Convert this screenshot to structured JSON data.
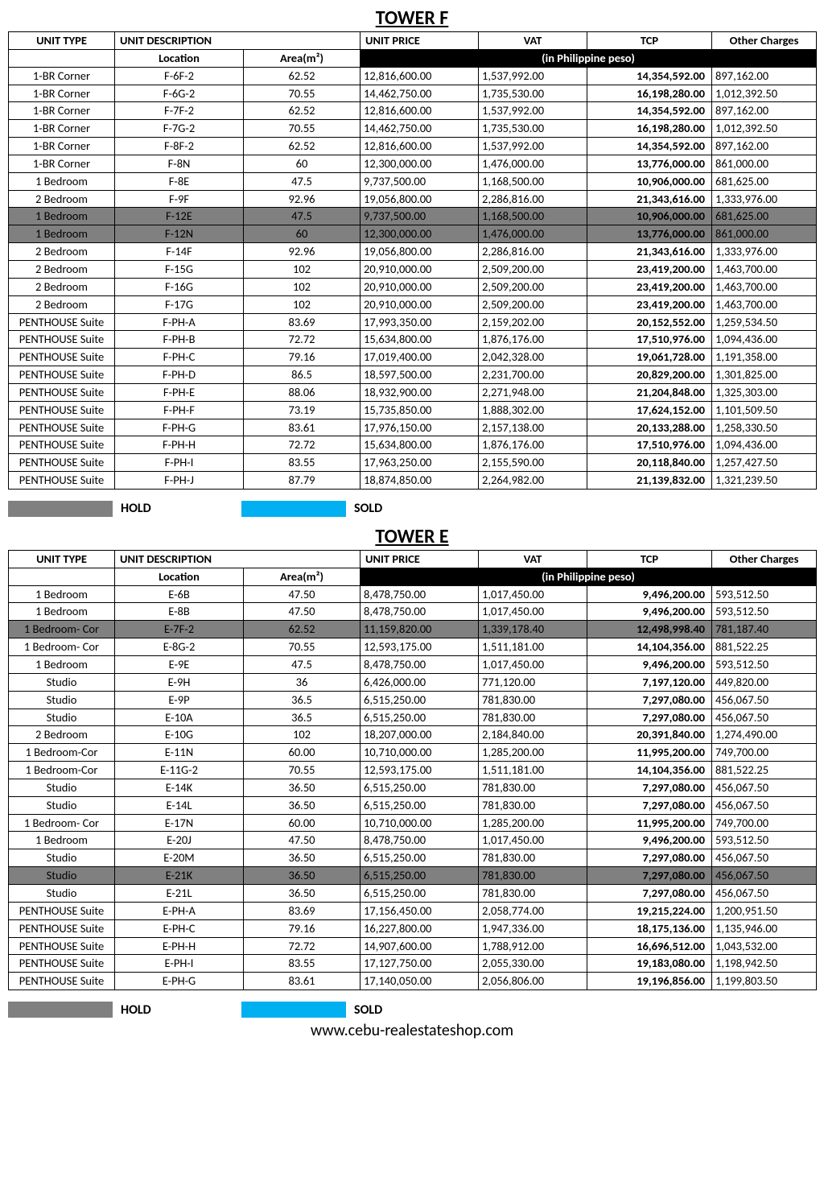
{
  "colors": {
    "hold": "#808080",
    "sold": "#00b0f0",
    "headerBand": "#000000",
    "headerBandText": "#ffffff"
  },
  "legend": {
    "hold": "HOLD",
    "sold": "SOLD"
  },
  "headers": {
    "unitType": "UNIT TYPE",
    "unitDesc": "UNIT DESCRIPTION",
    "location": "Location",
    "area": "Area(m²)",
    "unitPrice": "UNIT PRICE",
    "vat": "VAT",
    "tcp": "TCP",
    "other": "Other Charges",
    "peso": "(in Philippine peso)"
  },
  "footer": "www.cebu-realestateshop.com",
  "towers": [
    {
      "title": "TOWER F",
      "rows": [
        {
          "type": "1-BR Corner",
          "loc": "F-6F-2",
          "area": "62.52",
          "price": "12,816,600.00",
          "vat": "1,537,992.00",
          "tcp": "14,354,592.00",
          "other": "897,162.00",
          "status": ""
        },
        {
          "type": "1-BR Corner",
          "loc": "F-6G-2",
          "area": "70.55",
          "price": "14,462,750.00",
          "vat": "1,735,530.00",
          "tcp": "16,198,280.00",
          "other": "1,012,392.50",
          "status": ""
        },
        {
          "type": "1-BR Corner",
          "loc": "F-7F-2",
          "area": "62.52",
          "price": "12,816,600.00",
          "vat": "1,537,992.00",
          "tcp": "14,354,592.00",
          "other": "897,162.00",
          "status": ""
        },
        {
          "type": "1-BR Corner",
          "loc": "F-7G-2",
          "area": "70.55",
          "price": "14,462,750.00",
          "vat": "1,735,530.00",
          "tcp": "16,198,280.00",
          "other": "1,012,392.50",
          "status": ""
        },
        {
          "type": "1-BR Corner",
          "loc": "F-8F-2",
          "area": "62.52",
          "price": "12,816,600.00",
          "vat": "1,537,992.00",
          "tcp": "14,354,592.00",
          "other": "897,162.00",
          "status": ""
        },
        {
          "type": "1-BR Corner",
          "loc": "F-8N",
          "area": "60",
          "price": "12,300,000.00",
          "vat": "1,476,000.00",
          "tcp": "13,776,000.00",
          "other": "861,000.00",
          "status": ""
        },
        {
          "type": "1 Bedroom",
          "loc": "F-8E",
          "area": "47.5",
          "price": "9,737,500.00",
          "vat": "1,168,500.00",
          "tcp": "10,906,000.00",
          "other": "681,625.00",
          "status": ""
        },
        {
          "type": "2 Bedroom",
          "loc": "F-9F",
          "area": "92.96",
          "price": "19,056,800.00",
          "vat": "2,286,816.00",
          "tcp": "21,343,616.00",
          "other": "1,333,976.00",
          "status": ""
        },
        {
          "type": "1 Bedroom",
          "loc": "F-12E",
          "area": "47.5",
          "price": "9,737,500.00",
          "vat": "1,168,500.00",
          "tcp": "10,906,000.00",
          "other": "681,625.00",
          "status": "hold"
        },
        {
          "type": "1 Bedroom",
          "loc": "F-12N",
          "area": "60",
          "price": "12,300,000.00",
          "vat": "1,476,000.00",
          "tcp": "13,776,000.00",
          "other": "861,000.00",
          "status": "hold"
        },
        {
          "type": "2 Bedroom",
          "loc": "F-14F",
          "area": "92.96",
          "price": "19,056,800.00",
          "vat": "2,286,816.00",
          "tcp": "21,343,616.00",
          "other": "1,333,976.00",
          "status": ""
        },
        {
          "type": "2 Bedroom",
          "loc": "F-15G",
          "area": "102",
          "price": "20,910,000.00",
          "vat": "2,509,200.00",
          "tcp": "23,419,200.00",
          "other": "1,463,700.00",
          "status": ""
        },
        {
          "type": "2 Bedroom",
          "loc": "F-16G",
          "area": "102",
          "price": "20,910,000.00",
          "vat": "2,509,200.00",
          "tcp": "23,419,200.00",
          "other": "1,463,700.00",
          "status": ""
        },
        {
          "type": "2 Bedroom",
          "loc": "F-17G",
          "area": "102",
          "price": "20,910,000.00",
          "vat": "2,509,200.00",
          "tcp": "23,419,200.00",
          "other": "1,463,700.00",
          "status": ""
        },
        {
          "type": "PENTHOUSE Suite",
          "loc": "F-PH-A",
          "area": "83.69",
          "price": "17,993,350.00",
          "vat": "2,159,202.00",
          "tcp": "20,152,552.00",
          "other": "1,259,534.50",
          "status": ""
        },
        {
          "type": "PENTHOUSE Suite",
          "loc": "F-PH-B",
          "area": "72.72",
          "price": "15,634,800.00",
          "vat": "1,876,176.00",
          "tcp": "17,510,976.00",
          "other": "1,094,436.00",
          "status": ""
        },
        {
          "type": "PENTHOUSE Suite",
          "loc": "F-PH-C",
          "area": "79.16",
          "price": "17,019,400.00",
          "vat": "2,042,328.00",
          "tcp": "19,061,728.00",
          "other": "1,191,358.00",
          "status": ""
        },
        {
          "type": "PENTHOUSE Suite",
          "loc": "F-PH-D",
          "area": "86.5",
          "price": "18,597,500.00",
          "vat": "2,231,700.00",
          "tcp": "20,829,200.00",
          "other": "1,301,825.00",
          "status": ""
        },
        {
          "type": "PENTHOUSE Suite",
          "loc": "F-PH-E",
          "area": "88.06",
          "price": "18,932,900.00",
          "vat": "2,271,948.00",
          "tcp": "21,204,848.00",
          "other": "1,325,303.00",
          "status": ""
        },
        {
          "type": "PENTHOUSE Suite",
          "loc": "F-PH-F",
          "area": "73.19",
          "price": "15,735,850.00",
          "vat": "1,888,302.00",
          "tcp": "17,624,152.00",
          "other": "1,101,509.50",
          "status": ""
        },
        {
          "type": "PENTHOUSE Suite",
          "loc": "F-PH-G",
          "area": "83.61",
          "price": "17,976,150.00",
          "vat": "2,157,138.00",
          "tcp": "20,133,288.00",
          "other": "1,258,330.50",
          "status": ""
        },
        {
          "type": "PENTHOUSE Suite",
          "loc": "F-PH-H",
          "area": "72.72",
          "price": "15,634,800.00",
          "vat": "1,876,176.00",
          "tcp": "17,510,976.00",
          "other": "1,094,436.00",
          "status": ""
        },
        {
          "type": "PENTHOUSE Suite",
          "loc": "F-PH-I",
          "area": "83.55",
          "price": "17,963,250.00",
          "vat": "2,155,590.00",
          "tcp": "20,118,840.00",
          "other": "1,257,427.50",
          "status": ""
        },
        {
          "type": "PENTHOUSE Suite",
          "loc": "F-PH-J",
          "area": "87.79",
          "price": "18,874,850.00",
          "vat": "2,264,982.00",
          "tcp": "21,139,832.00",
          "other": "1,321,239.50",
          "status": ""
        }
      ]
    },
    {
      "title": "TOWER E",
      "rows": [
        {
          "type": "1 Bedroom",
          "loc": "E-6B",
          "area": "47.50",
          "price": "8,478,750.00",
          "vat": "1,017,450.00",
          "tcp": "9,496,200.00",
          "other": "593,512.50",
          "status": ""
        },
        {
          "type": "1 Bedroom",
          "loc": "E-8B",
          "area": "47.50",
          "price": "8,478,750.00",
          "vat": "1,017,450.00",
          "tcp": "9,496,200.00",
          "other": "593,512.50",
          "status": ""
        },
        {
          "type": "1 Bedroom- Cor",
          "loc": "E-7F-2",
          "area": "62.52",
          "price": "11,159,820.00",
          "vat": "1,339,178.40",
          "tcp": "12,498,998.40",
          "other": "781,187.40",
          "status": "hold"
        },
        {
          "type": "1 Bedroom- Cor",
          "loc": "E-8G-2",
          "area": "70.55",
          "price": "12,593,175.00",
          "vat": "1,511,181.00",
          "tcp": "14,104,356.00",
          "other": "881,522.25",
          "status": ""
        },
        {
          "type": "1 Bedroom",
          "loc": "E-9E",
          "area": "47.5",
          "price": "8,478,750.00",
          "vat": "1,017,450.00",
          "tcp": "9,496,200.00",
          "other": "593,512.50",
          "status": ""
        },
        {
          "type": "Studio",
          "loc": "E-9H",
          "area": "36",
          "price": "6,426,000.00",
          "vat": "771,120.00",
          "tcp": "7,197,120.00",
          "other": "449,820.00",
          "status": ""
        },
        {
          "type": "Studio",
          "loc": "E-9P",
          "area": "36.5",
          "price": "6,515,250.00",
          "vat": "781,830.00",
          "tcp": "7,297,080.00",
          "other": "456,067.50",
          "status": ""
        },
        {
          "type": "Studio",
          "loc": "E-10A",
          "area": "36.5",
          "price": "6,515,250.00",
          "vat": "781,830.00",
          "tcp": "7,297,080.00",
          "other": "456,067.50",
          "status": ""
        },
        {
          "type": "2 Bedroom",
          "loc": "E-10G",
          "area": "102",
          "price": "18,207,000.00",
          "vat": "2,184,840.00",
          "tcp": "20,391,840.00",
          "other": "1,274,490.00",
          "status": ""
        },
        {
          "type": "1 Bedroom-Cor",
          "loc": "E-11N",
          "area": "60.00",
          "price": "10,710,000.00",
          "vat": "1,285,200.00",
          "tcp": "11,995,200.00",
          "other": "749,700.00",
          "status": ""
        },
        {
          "type": "1 Bedroom-Cor",
          "loc": "E-11G-2",
          "area": "70.55",
          "price": "12,593,175.00",
          "vat": "1,511,181.00",
          "tcp": "14,104,356.00",
          "other": "881,522.25",
          "status": ""
        },
        {
          "type": "Studio",
          "loc": "E-14K",
          "area": "36.50",
          "price": "6,515,250.00",
          "vat": "781,830.00",
          "tcp": "7,297,080.00",
          "other": "456,067.50",
          "status": ""
        },
        {
          "type": "Studio",
          "loc": "E-14L",
          "area": "36.50",
          "price": "6,515,250.00",
          "vat": "781,830.00",
          "tcp": "7,297,080.00",
          "other": "456,067.50",
          "status": ""
        },
        {
          "type": "1 Bedroom- Cor",
          "loc": "E-17N",
          "area": "60.00",
          "price": "10,710,000.00",
          "vat": "1,285,200.00",
          "tcp": "11,995,200.00",
          "other": "749,700.00",
          "status": ""
        },
        {
          "type": "1 Bedroom",
          "loc": "E-20J",
          "area": "47.50",
          "price": "8,478,750.00",
          "vat": "1,017,450.00",
          "tcp": "9,496,200.00",
          "other": "593,512.50",
          "status": ""
        },
        {
          "type": "Studio",
          "loc": "E-20M",
          "area": "36.50",
          "price": "6,515,250.00",
          "vat": "781,830.00",
          "tcp": "7,297,080.00",
          "other": "456,067.50",
          "status": ""
        },
        {
          "type": "Studio",
          "loc": "E-21K",
          "area": "36.50",
          "price": "6,515,250.00",
          "vat": "781,830.00",
          "tcp": "7,297,080.00",
          "other": "456,067.50",
          "status": "hold"
        },
        {
          "type": "Studio",
          "loc": "E-21L",
          "area": "36.50",
          "price": "6,515,250.00",
          "vat": "781,830.00",
          "tcp": "7,297,080.00",
          "other": "456,067.50",
          "status": ""
        },
        {
          "type": "PENTHOUSE Suite",
          "loc": "E-PH-A",
          "area": "83.69",
          "price": "17,156,450.00",
          "vat": "2,058,774.00",
          "tcp": "19,215,224.00",
          "other": "1,200,951.50",
          "status": ""
        },
        {
          "type": "PENTHOUSE Suite",
          "loc": "E-PH-C",
          "area": "79.16",
          "price": "16,227,800.00",
          "vat": "1,947,336.00",
          "tcp": "18,175,136.00",
          "other": "1,135,946.00",
          "status": ""
        },
        {
          "type": "PENTHOUSE Suite",
          "loc": "E-PH-H",
          "area": "72.72",
          "price": "14,907,600.00",
          "vat": "1,788,912.00",
          "tcp": "16,696,512.00",
          "other": "1,043,532.00",
          "status": ""
        },
        {
          "type": "PENTHOUSE Suite",
          "loc": "E-PH-I",
          "area": "83.55",
          "price": "17,127,750.00",
          "vat": "2,055,330.00",
          "tcp": "19,183,080.00",
          "other": "1,198,942.50",
          "status": ""
        },
        {
          "type": "PENTHOUSE Suite",
          "loc": "E-PH-G",
          "area": "83.61",
          "price": "17,140,050.00",
          "vat": "2,056,806.00",
          "tcp": "19,196,856.00",
          "other": "1,199,803.50",
          "status": ""
        }
      ]
    }
  ]
}
